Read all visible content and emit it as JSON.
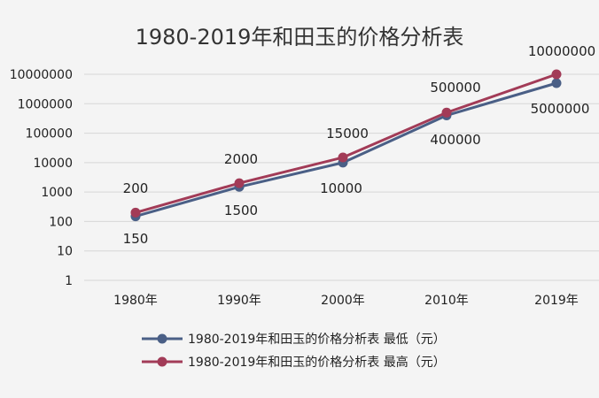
{
  "chart_data": {
    "type": "line",
    "title": "1980-2019年和田玉的价格分析表",
    "y_scale": "log10",
    "ylim": [
      1,
      10000000
    ],
    "y_ticks": [
      "1",
      "10",
      "100",
      "1000",
      "10000",
      "100000",
      "1000000",
      "10000000"
    ],
    "categories": [
      "1980年",
      "1990年",
      "2000年",
      "2010年",
      "2019年"
    ],
    "grid": true,
    "legend_position": "bottom",
    "series": [
      {
        "name": "1980-2019年和田玉的价格分析表 最低（元）",
        "color": "#4a5f86",
        "values": [
          150,
          1500,
          10000,
          400000,
          5000000
        ],
        "labels": [
          "150",
          "1500",
          "10000",
          "400000",
          "5000000"
        ]
      },
      {
        "name": "1980-2019年和田玉的价格分析表 最高（元）",
        "color": "#a23b57",
        "values": [
          200,
          2000,
          15000,
          500000,
          10000000
        ],
        "labels": [
          "200",
          "2000",
          "15000",
          "500000",
          "10000000"
        ]
      }
    ]
  }
}
